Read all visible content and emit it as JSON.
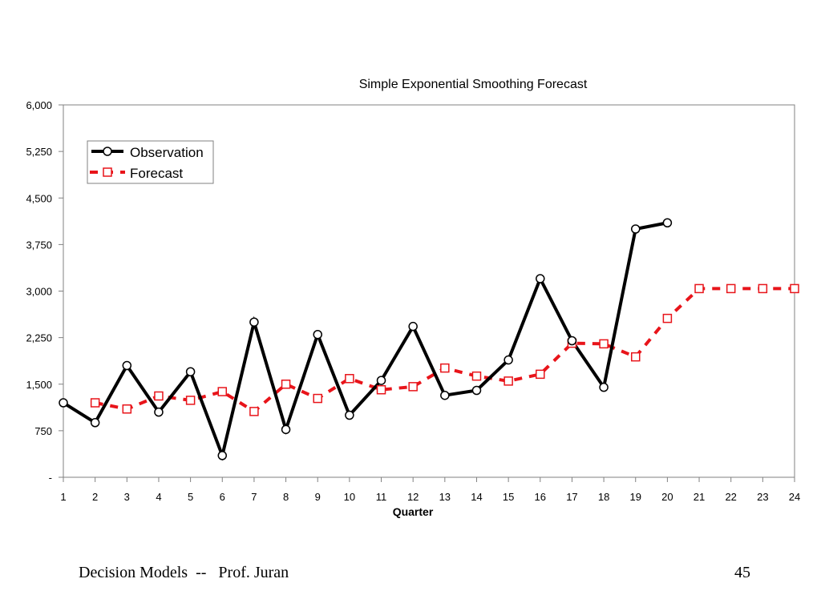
{
  "footer": {
    "left_text": "Decision Models  --   Prof. Juran",
    "page_number": "45"
  },
  "colors": {
    "observation": "#000000",
    "forecast": "#e8141a",
    "axis": "#808080"
  },
  "chart_data": {
    "type": "line",
    "title": "Simple Exponential Smoothing Forecast",
    "xlabel": "Quarter",
    "ylabel": "",
    "x": [
      1,
      2,
      3,
      4,
      5,
      6,
      7,
      8,
      9,
      10,
      11,
      12,
      13,
      14,
      15,
      16,
      17,
      18,
      19,
      20,
      21,
      22,
      23,
      24
    ],
    "ylim": [
      0,
      6000
    ],
    "yticks": [
      0,
      750,
      1500,
      2250,
      3000,
      3750,
      4500,
      5250,
      6000
    ],
    "ytick_labels": [
      "-",
      "750",
      "1,500",
      "2,250",
      "3,000",
      "3,750",
      "4,500",
      "5,250",
      "6,000"
    ],
    "grid": false,
    "legend_position": "top-left",
    "series": [
      {
        "name": "Observation",
        "style": "solid-circle",
        "x": [
          1,
          2,
          3,
          4,
          5,
          6,
          7,
          8,
          9,
          10,
          11,
          12,
          13,
          14,
          15,
          16,
          17,
          18,
          19,
          20
        ],
        "values": [
          1200,
          880,
          1800,
          1050,
          1700,
          350,
          2500,
          770,
          2300,
          1000,
          1560,
          2430,
          1320,
          1400,
          1890,
          3200,
          2200,
          1450,
          4000,
          4100
        ]
      },
      {
        "name": "Forecast",
        "style": "dashed-square",
        "x": [
          2,
          3,
          4,
          5,
          6,
          7,
          8,
          9,
          10,
          11,
          12,
          13,
          14,
          15,
          16,
          17,
          18,
          19,
          20,
          21,
          22,
          23,
          24
        ],
        "values": [
          1200,
          1100,
          1310,
          1240,
          1380,
          1060,
          1500,
          1270,
          1590,
          1410,
          1460,
          1760,
          1630,
          1550,
          1660,
          2160,
          2150,
          1940,
          2560,
          3040,
          3040,
          3040,
          3040
        ]
      }
    ]
  }
}
